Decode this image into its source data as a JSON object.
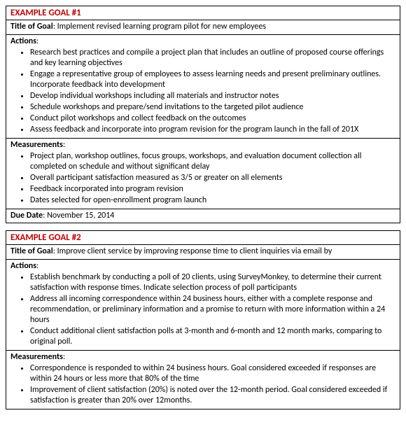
{
  "goals": [
    {
      "header": "EXAMPLE GOAL #1",
      "title_label": "Title of Goal",
      "title_value": "Implement revised learning program pilot for new employees",
      "actions_label": "Actions",
      "actions": [
        "Research best practices and compile a project plan that includes an outline of proposed course offerings and key learning objectives",
        "Engage a representative group of employees to assess learning needs and present preliminary outlines. Incorporate feedback into development",
        "Develop individual workshops including all materials and instructor notes",
        "Schedule workshops and prepare/send invitations to the targeted pilot audience",
        "Conduct pilot workshops and collect feedback on the outcomes",
        "Assess feedback and incorporate into program revision for the program launch in the fall of 201X"
      ],
      "measurements_label": "Measurements",
      "measurements": [
        "Project plan, workshop outlines, focus groups, workshops, and evaluation document collection all completed on schedule and without significant delay",
        "Overall participant satisfaction measured as 3/5 or greater on all elements",
        "Feedback incorporated into program revision",
        "Dates selected for open-enrollment program launch"
      ],
      "due_label": "Due Date",
      "due_value": "November 15, 2014"
    },
    {
      "header": "EXAMPLE GOAL #2",
      "title_label": "Title of Goal",
      "title_value": "Improve client service by improving response time to client inquiries via email by",
      "actions_label": "Actions",
      "actions": [
        "Establish benchmark by conducting a poll of 20 clients, using SurveyMonkey, to determine their current satisfaction with response times. Indicate selection process of poll participants",
        "Address all incoming correspondence within 24 business hours, either with a complete response and recommendation, or preliminary information and a promise to return with more information within a 24 hours",
        "Conduct additional client satisfaction polls at 3-month and 6-month and 12 month marks, comparing to original poll."
      ],
      "measurements_label": "Measurements",
      "measurements": [
        "Correspondence is responded to within 24  business hours. Goal considered exceeded if responses are within 24 hours or less  more that 80% of the time",
        "Improvement of client satisfaction (20%) is noted over the 12-month period. Goal considered exceeded if satisfaction is greater than 20% over 12months."
      ]
    }
  ],
  "colors": {
    "header_color": "#c00000",
    "border_color": "#000000",
    "text_color": "#000000",
    "background": "#ffffff"
  },
  "typography": {
    "body_fontsize": 12,
    "header_fontsize": 13,
    "font_family": "Calibri"
  }
}
